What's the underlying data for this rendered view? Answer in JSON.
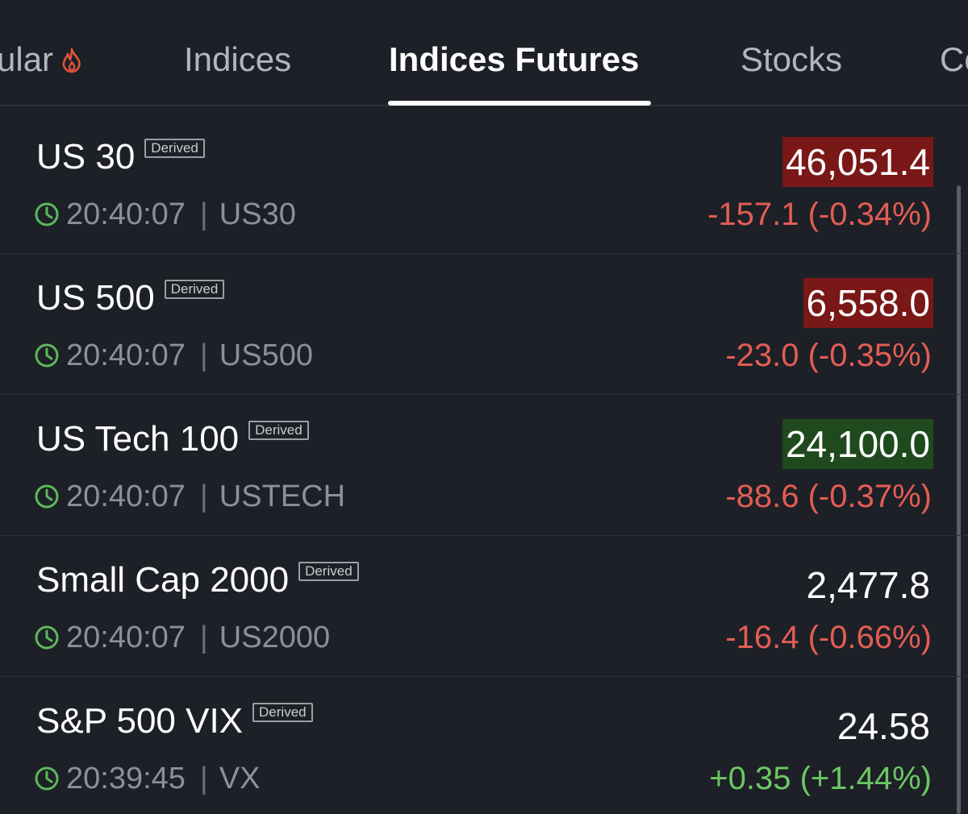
{
  "tabs": [
    {
      "label": "ular",
      "has_fire_icon": true,
      "active": false
    },
    {
      "label": "Indices",
      "active": false
    },
    {
      "label": "Indices Futures",
      "active": true
    },
    {
      "label": "Stocks",
      "active": false
    },
    {
      "label": "Co",
      "active": false
    }
  ],
  "colors": {
    "background": "#1d2026",
    "negative": "#e45d54",
    "positive": "#6cc764",
    "price_down_highlight": "#7a1717",
    "price_up_highlight": "#1f4a1e",
    "clock_icon": "#5cb85c",
    "fire_icon": "#e0533d"
  },
  "rows": [
    {
      "name": "US 30",
      "badge": "Derived",
      "time": "20:40:07",
      "separator": "|",
      "symbol": "US30",
      "price": "46,051.4",
      "price_highlight": "down",
      "change": "-157.1 (-0.34%)",
      "direction": "negative"
    },
    {
      "name": "US 500",
      "badge": "Derived",
      "time": "20:40:07",
      "separator": "|",
      "symbol": "US500",
      "price": "6,558.0",
      "price_highlight": "down",
      "change": "-23.0 (-0.35%)",
      "direction": "negative"
    },
    {
      "name": "US Tech 100",
      "badge": "Derived",
      "time": "20:40:07",
      "separator": "|",
      "symbol": "USTECH",
      "price": "24,100.0",
      "price_highlight": "up",
      "change": "-88.6 (-0.37%)",
      "direction": "negative"
    },
    {
      "name": "Small Cap 2000",
      "badge": "Derived",
      "time": "20:40:07",
      "separator": "|",
      "symbol": "US2000",
      "price": "2,477.8",
      "price_highlight": "none",
      "change": "-16.4 (-0.66%)",
      "direction": "negative"
    },
    {
      "name": "S&P 500 VIX",
      "badge": "Derived",
      "time": "20:39:45",
      "separator": "|",
      "symbol": "VX",
      "price": "24.58",
      "price_highlight": "none",
      "change": "+0.35 (+1.44%)",
      "direction": "positive"
    }
  ]
}
